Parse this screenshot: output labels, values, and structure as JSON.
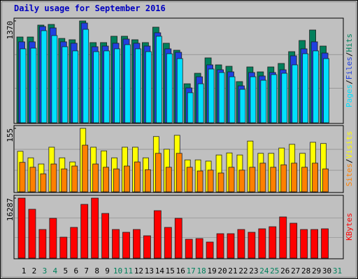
{
  "title": "Daily usage for September 2016",
  "legend_separator": "/",
  "chart_data": [
    {
      "type": "bar",
      "categories": [
        "1",
        "2",
        "3",
        "4",
        "5",
        "6",
        "7",
        "8",
        "9",
        "10",
        "11",
        "12",
        "13",
        "14",
        "15",
        "16",
        "17",
        "18",
        "19",
        "20",
        "21",
        "22",
        "23",
        "24",
        "25",
        "26",
        "27",
        "28",
        "29",
        "30",
        "31"
      ],
      "category_colors": [
        "#000000",
        "#000000",
        "#00805c",
        "#00805c",
        "#000000",
        "#000000",
        "#000000",
        "#000000",
        "#000000",
        "#00805c",
        "#00805c",
        "#000000",
        "#000000",
        "#000000",
        "#000000",
        "#000000",
        "#00805c",
        "#00805c",
        "#000000",
        "#000000",
        "#000000",
        "#000000",
        "#000000",
        "#00805c",
        "#00805c",
        "#000000",
        "#000000",
        "#000000",
        "#000000",
        "#000000",
        "#00805c"
      ],
      "ylim": [
        0,
        1370
      ],
      "yticks": [
        1370
      ],
      "series": [
        {
          "name": "Hits",
          "color": "#00805c",
          "values": [
            1154,
            1154,
            1314,
            1323,
            1135,
            1117,
            1370,
            1079,
            1079,
            1164,
            1164,
            1117,
            1079,
            1286,
            1070,
            976,
            525,
            666,
            873,
            779,
            760,
            554,
            751,
            685,
            751,
            798,
            957,
            1107,
            1248,
            1032,
            null
          ]
        },
        {
          "name": "Files",
          "color": "#2040e0",
          "values": [
            1089,
            1089,
            1295,
            1276,
            1089,
            1070,
            1342,
            1023,
            1032,
            1070,
            1126,
            1070,
            1032,
            1211,
            995,
            948,
            469,
            619,
            779,
            713,
            685,
            497,
            676,
            629,
            676,
            713,
            901,
            995,
            1089,
            938,
            null
          ]
        },
        {
          "name": "Pages",
          "color": "#00e0ff",
          "values": [
            995,
            1004,
            1239,
            1173,
            1023,
            967,
            1257,
            957,
            967,
            995,
            1051,
            995,
            957,
            1164,
            929,
            863,
            404,
            525,
            723,
            676,
            619,
            450,
            619,
            572,
            648,
            666,
            779,
            929,
            967,
            863,
            null
          ]
        }
      ]
    },
    {
      "type": "bar",
      "ylim": [
        0,
        155
      ],
      "yticks": [
        155
      ],
      "series": [
        {
          "name": "Visits",
          "color": "#ffff00",
          "values": [
            99,
            83,
            68,
            109,
            83,
            73,
            155,
            109,
            100,
            83,
            109,
            109,
            83,
            135,
            104,
            138,
            78,
            78,
            75,
            90,
            95,
            90,
            124,
            94,
            94,
            107,
            116,
            94,
            121,
            118,
            null
          ]
        },
        {
          "name": "Sites",
          "color": "#ff8000",
          "values": [
            72,
            60,
            44,
            68,
            56,
            63,
            114,
            68,
            60,
            56,
            63,
            73,
            54,
            94,
            60,
            94,
            60,
            51,
            53,
            46,
            60,
            53,
            60,
            70,
            60,
            66,
            70,
            60,
            70,
            56,
            null
          ]
        }
      ]
    },
    {
      "type": "bar",
      "ylim": [
        0,
        16287
      ],
      "yticks": [
        16287
      ],
      "series": [
        {
          "name": "KBytes",
          "color": "#ff0000",
          "values": [
            16287,
            13258,
            7765,
            10796,
            5682,
            8334,
            14584,
            16287,
            12122,
            7765,
            7008,
            7765,
            6061,
            12879,
            8334,
            10796,
            5114,
            5303,
            4356,
            6629,
            6629,
            7765,
            7008,
            7955,
            8523,
            11175,
            9470,
            7765,
            7765,
            7955,
            null
          ]
        }
      ]
    }
  ]
}
